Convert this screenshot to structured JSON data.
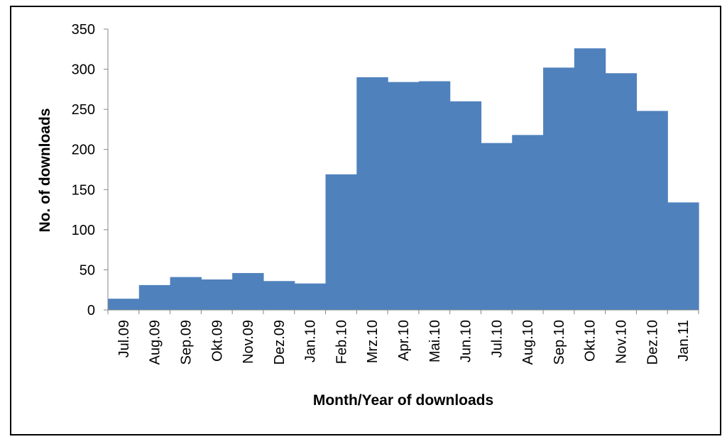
{
  "chart_data": {
    "type": "bar",
    "categories": [
      "Jul.09",
      "Aug.09",
      "Sep.09",
      "Okt.09",
      "Nov.09",
      "Dez.09",
      "Jan.10",
      "Feb.10",
      "Mrz.10",
      "Apr.10",
      "Mai.10",
      "Jun.10",
      "Jul.10",
      "Aug.10",
      "Sep.10",
      "Okt.10",
      "Nov.10",
      "Dez.10",
      "Jan.11"
    ],
    "values": [
      14,
      31,
      41,
      38,
      46,
      36,
      33,
      169,
      290,
      284,
      285,
      260,
      208,
      218,
      302,
      326,
      295,
      248,
      134
    ],
    "title": "",
    "xlabel": "Month/Year of downloads",
    "ylabel": "No. of downloads",
    "ylim": [
      0,
      350
    ],
    "yticks": [
      0,
      50,
      100,
      150,
      200,
      250,
      300,
      350
    ],
    "grid": false,
    "bar_color": "#4f81bd",
    "bar_gap": 0
  }
}
